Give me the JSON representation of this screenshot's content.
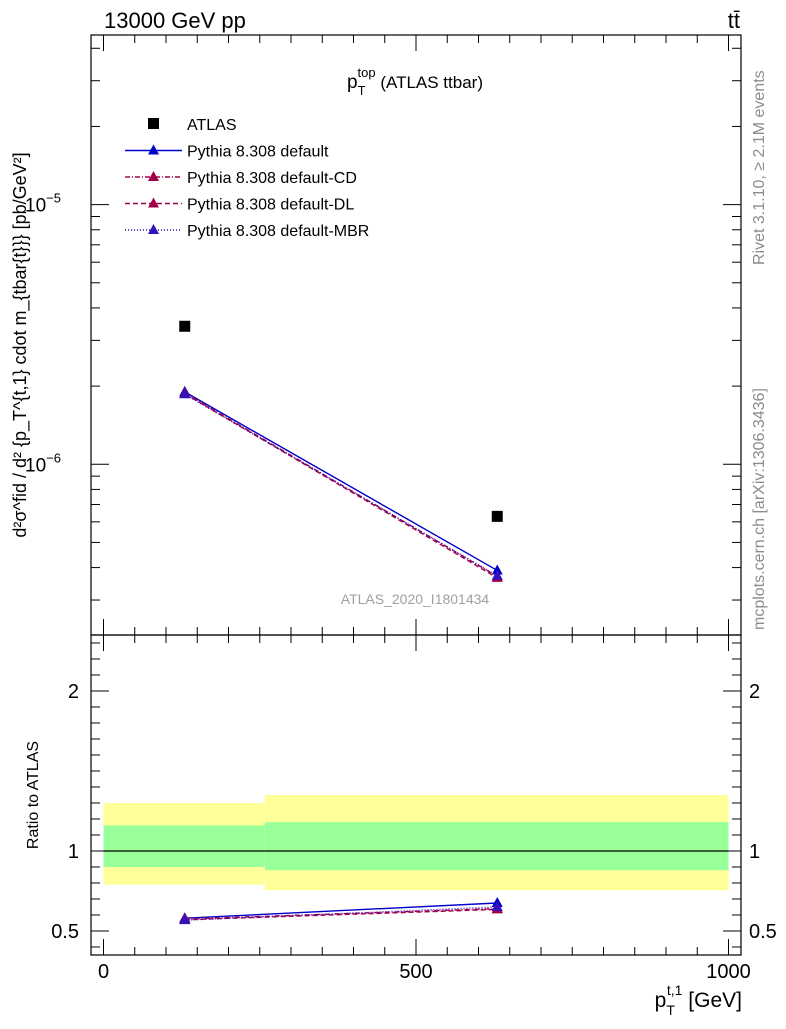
{
  "header": {
    "left": "13000 GeV pp",
    "right": "tt̄"
  },
  "side_labels": {
    "rivet": "Rivet 3.1.10, ≥ 2.1M events",
    "mcplots": "mcplots.cern.ch [arXiv:1306.3436]"
  },
  "chart_data": [
    {
      "type": "scatter",
      "title": "p_T^top (ATLAS ttbar)",
      "title_main": "p",
      "title_sub": "T",
      "title_sup": "top",
      "title_rest": " (ATLAS ttbar)",
      "ylabel": "d²σ^fid / d² {p_T^{t,1} cdot m_{tbar{t}}} [pb/GeV²]",
      "yscale": "log",
      "ylim": [
        2.2e-07,
        4.5e-05
      ],
      "xlim": [
        -20,
        1020
      ],
      "yticks": [
        {
          "value": 1e-06,
          "label": "10",
          "exp": "−6"
        },
        {
          "value": 1e-05,
          "label": "10",
          "exp": "−5"
        }
      ],
      "watermark": "ATLAS_2020_I1801434",
      "data": {
        "name": "ATLAS",
        "x": [
          130,
          630
        ],
        "y": [
          3.4e-06,
          6.3e-07
        ]
      },
      "series": [
        {
          "name": "Pythia 8.308 default",
          "color": "#0000cc",
          "dash": "",
          "x": [
            130,
            630
          ],
          "y": [
            1.9e-06,
            3.9e-07
          ]
        },
        {
          "name": "Pythia 8.308 default-CD",
          "color": "#a0004a",
          "dash": "5,2,1,2",
          "x": [
            130,
            630
          ],
          "y": [
            1.88e-06,
            3.7e-07
          ]
        },
        {
          "name": "Pythia 8.308 default-DL",
          "color": "#a0004a",
          "dash": "5,3",
          "x": [
            130,
            630
          ],
          "y": [
            1.87e-06,
            3.65e-07
          ]
        },
        {
          "name": "Pythia 8.308 default-MBR",
          "color": "#3311bb",
          "dash": "1,2",
          "x": [
            130,
            630
          ],
          "y": [
            1.86e-06,
            3.72e-07
          ]
        }
      ]
    },
    {
      "type": "line",
      "ylabel": "Ratio to ATLAS",
      "xlabel": "p_T^{t,1} [GeV]",
      "xlabel_main": "p",
      "xlabel_sub": "T",
      "xlabel_sup": "t,1",
      "xlabel_rest": " [GeV]",
      "xlim": [
        -20,
        1020
      ],
      "ylim": [
        0.35,
        2.35
      ],
      "xticks": [
        0,
        500,
        1000
      ],
      "yticks": [
        0.5,
        1,
        2
      ],
      "bands": [
        {
          "x0": 0,
          "x1": 258,
          "yellow": [
            0.79,
            1.3
          ],
          "green": [
            0.9,
            1.16
          ]
        },
        {
          "x0": 258,
          "x1": 1000,
          "yellow": [
            0.755,
            1.35
          ],
          "green": [
            0.88,
            1.18
          ]
        }
      ],
      "series": [
        {
          "name": "Pythia 8.308 default",
          "color": "#0000cc",
          "dash": "",
          "x": [
            130,
            630
          ],
          "y": [
            0.58,
            0.675
          ],
          "err": [
            0.02,
            0.02
          ]
        },
        {
          "name": "Pythia 8.308 default-CD",
          "color": "#a0004a",
          "dash": "5,2,1,2",
          "x": [
            130,
            630
          ],
          "y": [
            0.575,
            0.64
          ],
          "err": [
            0.02,
            0.02
          ]
        },
        {
          "name": "Pythia 8.308 default-DL",
          "color": "#a0004a",
          "dash": "5,3",
          "x": [
            130,
            630
          ],
          "y": [
            0.57,
            0.635
          ],
          "err": [
            0.02,
            0.02
          ]
        },
        {
          "name": "Pythia 8.308 default-MBR",
          "color": "#3311bb",
          "dash": "1,2",
          "x": [
            130,
            630
          ],
          "y": [
            0.568,
            0.65
          ],
          "err": [
            0.02,
            0.02
          ]
        }
      ]
    }
  ]
}
